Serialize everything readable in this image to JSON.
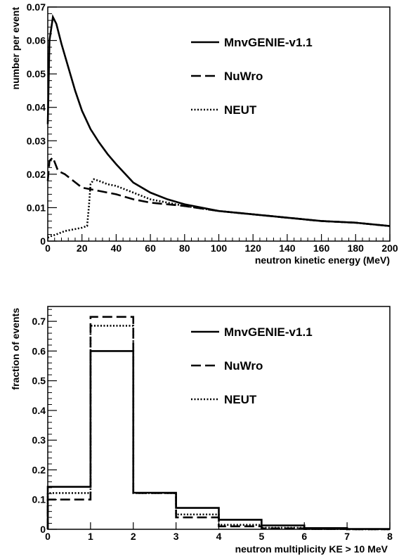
{
  "colors": {
    "ink": "#000000",
    "background": "#ffffff"
  },
  "chart_data": [
    {
      "type": "line",
      "title": "",
      "xlabel": "neutron kinetic energy (MeV)",
      "ylabel": "number per event",
      "xlim": [
        0,
        200
      ],
      "ylim": [
        0,
        0.07
      ],
      "xticks": [
        0,
        20,
        40,
        60,
        80,
        100,
        120,
        140,
        160,
        180,
        200
      ],
      "yticks": [
        0,
        0.01,
        0.02,
        0.03,
        0.04,
        0.05,
        0.06,
        0.07
      ],
      "xtick_labels": [
        "0",
        "20",
        "40",
        "60",
        "80",
        "100",
        "120",
        "140",
        "160",
        "180",
        "200"
      ],
      "ytick_labels": [
        "0",
        "0.01",
        "0.02",
        "0.03",
        "0.04",
        "0.05",
        "0.06",
        "0.07"
      ],
      "grid": false,
      "legend_position": "top-right",
      "series": [
        {
          "name": "MnvGENIE-v1.1",
          "line_style": "solid",
          "x": [
            0,
            1,
            3,
            5,
            8,
            12,
            16,
            20,
            25,
            30,
            35,
            40,
            50,
            60,
            70,
            80,
            100,
            120,
            140,
            160,
            180,
            200
          ],
          "y": [
            0.035,
            0.06,
            0.067,
            0.065,
            0.059,
            0.052,
            0.045,
            0.039,
            0.0335,
            0.0295,
            0.026,
            0.023,
            0.0175,
            0.0145,
            0.0125,
            0.011,
            0.009,
            0.008,
            0.007,
            0.006,
            0.0055,
            0.0045
          ]
        },
        {
          "name": "NuWro",
          "line_style": "dashed",
          "x": [
            0,
            1,
            3,
            6,
            10,
            15,
            20,
            25,
            30,
            40,
            50,
            60,
            70,
            80,
            100,
            120,
            140,
            160,
            180,
            200
          ],
          "y": [
            0.018,
            0.024,
            0.025,
            0.021,
            0.02,
            0.018,
            0.016,
            0.0155,
            0.015,
            0.014,
            0.0125,
            0.0115,
            0.011,
            0.0105,
            0.009,
            0.008,
            0.007,
            0.006,
            0.0055,
            0.0045
          ]
        },
        {
          "name": "NEUT",
          "line_style": "dotted",
          "x": [
            0,
            2,
            5,
            10,
            15,
            20,
            23,
            24,
            25,
            27,
            30,
            35,
            40,
            50,
            60,
            70,
            80,
            100,
            120,
            140,
            160,
            180,
            200
          ],
          "y": [
            0.001,
            0.0015,
            0.002,
            0.003,
            0.0035,
            0.004,
            0.0045,
            0.01,
            0.017,
            0.0185,
            0.018,
            0.017,
            0.0165,
            0.0145,
            0.0125,
            0.0115,
            0.0105,
            0.009,
            0.008,
            0.007,
            0.006,
            0.0055,
            0.0045
          ]
        }
      ]
    },
    {
      "type": "histogram",
      "title": "",
      "xlabel": "neutron multiplicity KE > 10 MeV",
      "ylabel": "fraction of events",
      "xlim": [
        0,
        8
      ],
      "ylim": [
        0,
        0.75
      ],
      "xticks": [
        0,
        1,
        2,
        3,
        4,
        5,
        6,
        7,
        8
      ],
      "yticks": [
        0,
        0.1,
        0.2,
        0.3,
        0.4,
        0.5,
        0.6,
        0.7
      ],
      "xtick_labels": [
        "0",
        "1",
        "2",
        "3",
        "4",
        "5",
        "6",
        "7",
        "8"
      ],
      "ytick_labels": [
        "0",
        "0.1",
        "0.2",
        "0.3",
        "0.4",
        "0.5",
        "0.6",
        "0.7"
      ],
      "grid": false,
      "legend_position": "top-right",
      "bin_edges": [
        0,
        1,
        2,
        3,
        4,
        5,
        6,
        7,
        8
      ],
      "series": [
        {
          "name": "MnvGENIE-v1.1",
          "line_style": "solid",
          "values": [
            0.143,
            0.6,
            0.123,
            0.072,
            0.032,
            0.013,
            0.004,
            0.001
          ]
        },
        {
          "name": "NuWro",
          "line_style": "dashed",
          "values": [
            0.1,
            0.715,
            0.122,
            0.04,
            0.01,
            0.003,
            0.001,
            0.0
          ]
        },
        {
          "name": "NEUT",
          "line_style": "dotted",
          "values": [
            0.122,
            0.685,
            0.122,
            0.05,
            0.015,
            0.005,
            0.001,
            0.0
          ]
        }
      ]
    }
  ]
}
